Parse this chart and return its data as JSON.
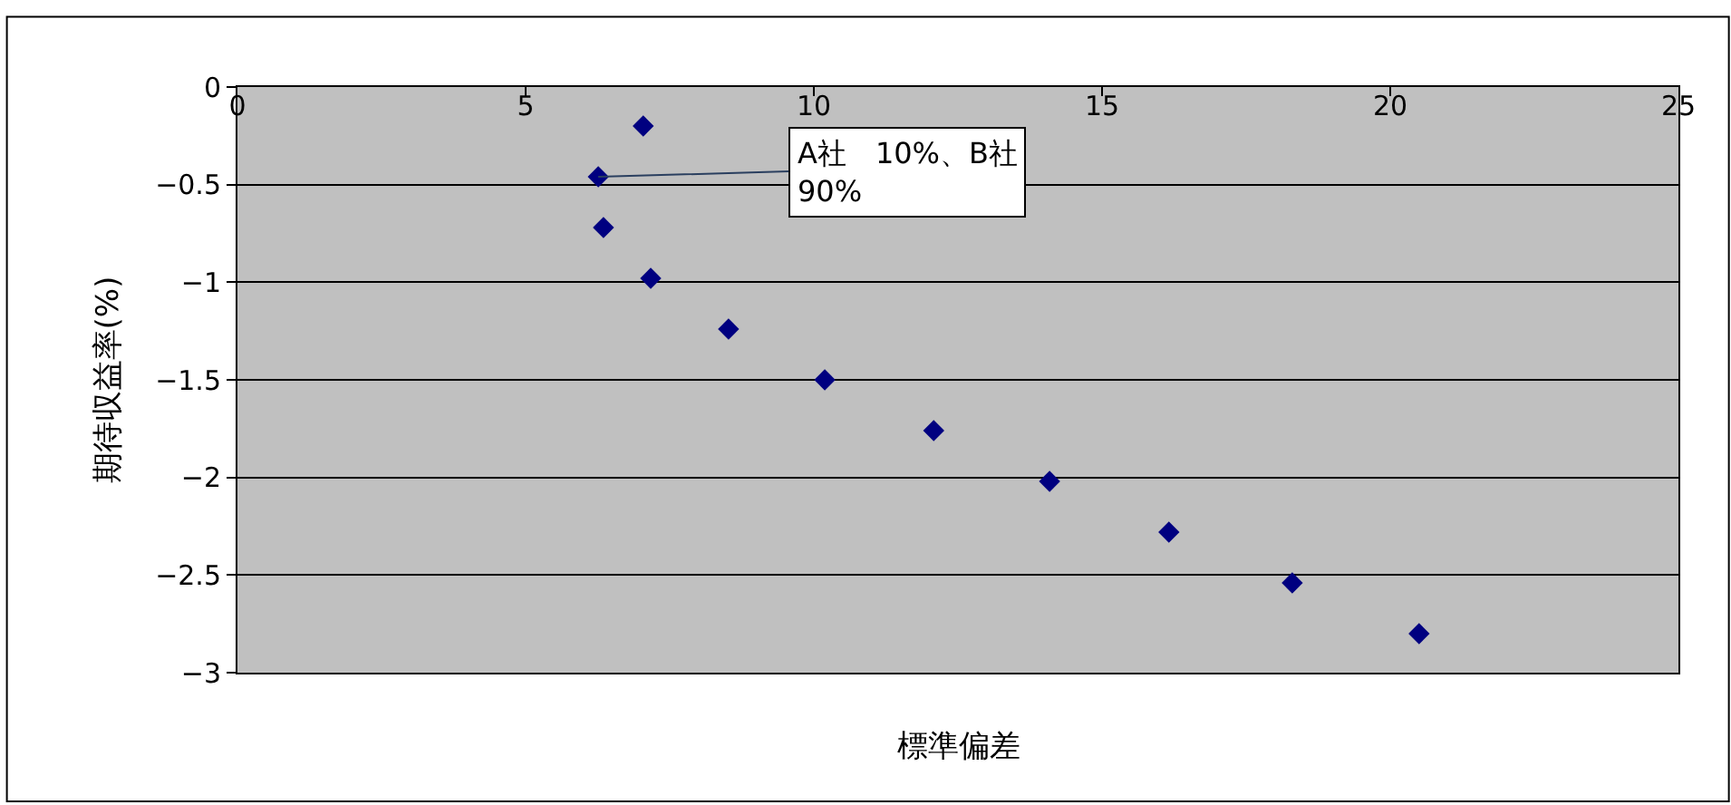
{
  "chart_data": {
    "type": "scatter",
    "xlabel": "標準偏差",
    "ylabel": "期待収益率(%)",
    "x": [
      7.04,
      6.26,
      6.35,
      7.17,
      8.52,
      10.19,
      12.08,
      14.09,
      16.16,
      18.3,
      20.5
    ],
    "series": [
      {
        "color": "#000080",
        "values": [
          -0.2,
          -0.46,
          -0.72,
          -0.98,
          -1.24,
          -1.5,
          -1.76,
          -2.02,
          -2.28,
          -2.54,
          -2.8
        ]
      }
    ],
    "xlim": [
      0,
      25
    ],
    "xticks": [
      0,
      5,
      10,
      15,
      20,
      25
    ],
    "ylim": [
      -3,
      0
    ],
    "yticks": [
      0,
      -0.5,
      -1,
      -1.5,
      -2,
      -2.5,
      -3
    ],
    "grid": "y",
    "marker": "diamond",
    "annotations": [
      {
        "text": "A社　10%、B社\n90%",
        "x": 6.26,
        "y": -0.46
      }
    ]
  }
}
